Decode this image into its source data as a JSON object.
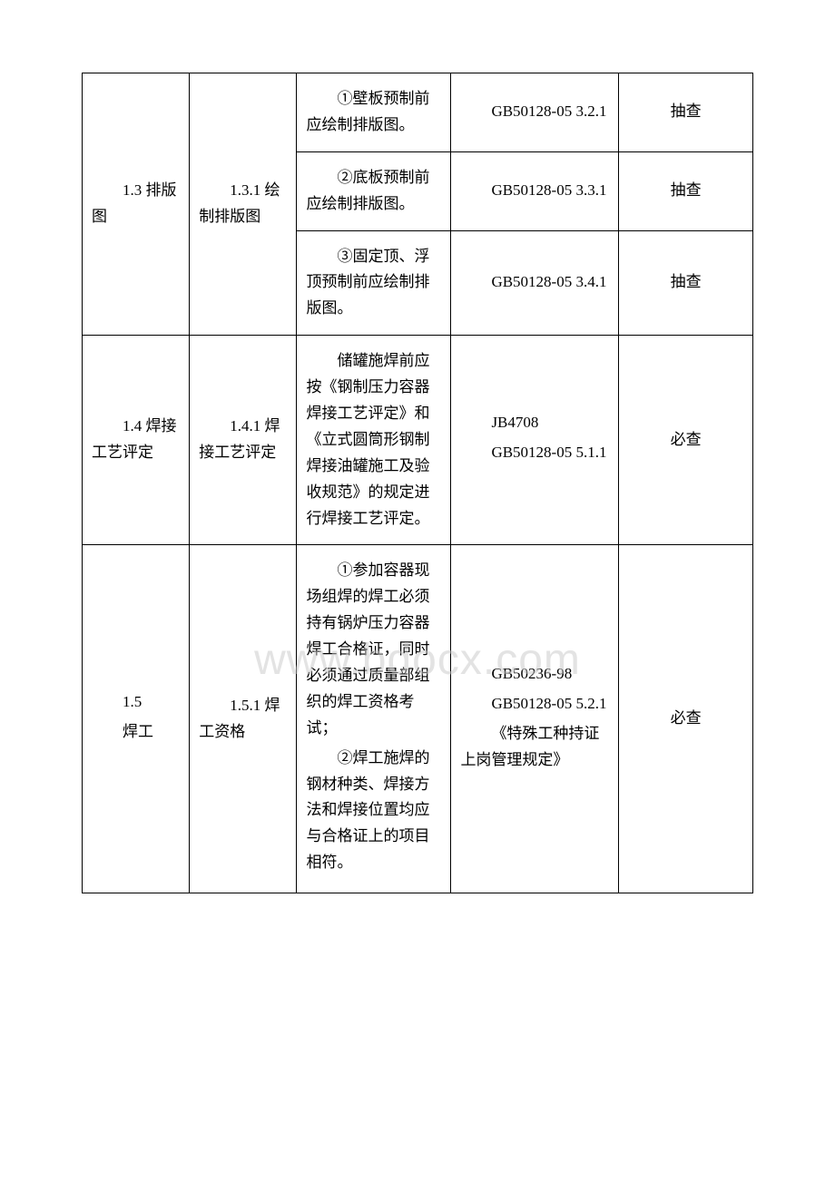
{
  "watermark": "www.bdocx.com",
  "table": {
    "rows": [
      {
        "col1": "1.3 排版图",
        "col1_rowspan": 3,
        "col2": "1.3.1 绘制排版图",
        "col2_rowspan": 3,
        "col3": "①壁板预制前应绘制排版图。",
        "col4": "GB50128-05 3.2.1",
        "col5": "抽查"
      },
      {
        "col3": "②底板预制前应绘制排版图。",
        "col4": "GB50128-05 3.3.1",
        "col5": "抽查"
      },
      {
        "col3": "③固定顶、浮顶预制前应绘制排版图。",
        "col4": "GB50128-05 3.4.1",
        "col5": "抽查"
      },
      {
        "col1": "1.4 焊接工艺评定",
        "col2": "1.4.1 焊接工艺评定",
        "col3": "储罐施焊前应按《钢制压力容器焊接工艺评定》和《立式圆筒形钢制焊接油罐施工及验收规范》的规定进行焊接工艺评定。",
        "col4_line1": "JB4708",
        "col4_line2": "GB50128-05 5.1.1",
        "col5": "必查"
      },
      {
        "col1_line1": "1.5",
        "col1_line2": "焊工",
        "col2": "1.5.1 焊工资格",
        "col3_para1": "①参加容器现场组焊的焊工必须持有锅炉压力容器焊工合格证，同时必须通过质量部组织的焊工资格考试；",
        "col3_para2": "②焊工施焊的钢材种类、焊接方法和焊接位置均应与合格证上的项目相符。",
        "col4_line1": "GB50236-98",
        "col4_line2": "GB50128-05 5.2.1",
        "col4_line3": "《特殊工种持证上岗管理规定》",
        "col5": "必查"
      }
    ]
  }
}
